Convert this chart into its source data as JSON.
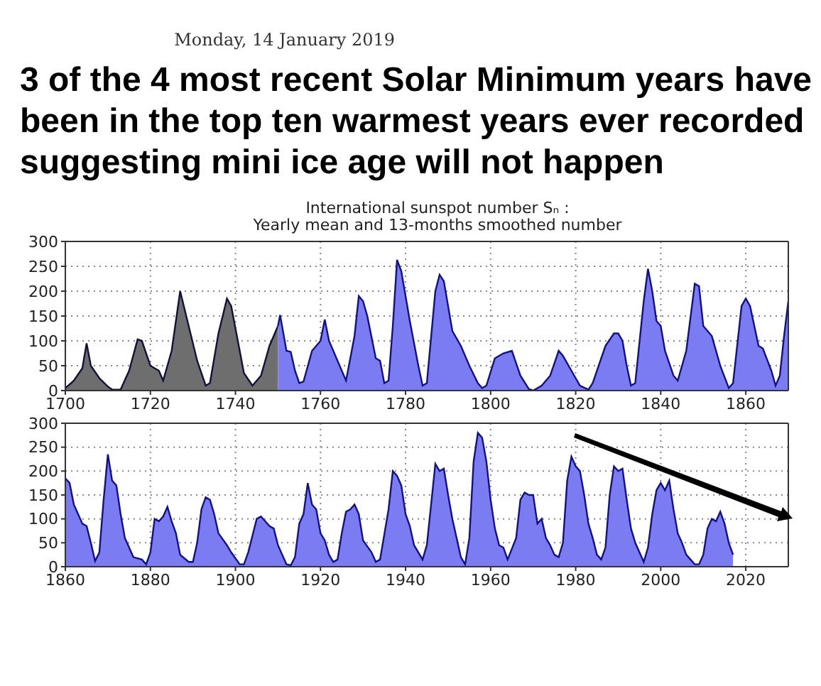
{
  "chart_data": [
    {
      "type": "area",
      "title": "3 of the 4 most recent Solar Minimum years have been in the top ten warmest years ever recorded suggesting mini ice age will not happen",
      "subtitle": "International sunspot number Sₙ :\nYearly mean and 13-months smoothed number",
      "annotations": [
        "Monday, 14 January 2019"
      ],
      "series": [
        {
          "color": "#6e6e6e",
          "x": [
            1700,
            1702,
            1704,
            1705,
            1706,
            1708,
            1710,
            1711,
            1713,
            1715,
            1717,
            1718,
            1720,
            1722,
            1723,
            1725,
            1727,
            1729,
            1731,
            1733,
            1734,
            1736,
            1738,
            1739,
            1741,
            1742,
            1744,
            1746,
            1748,
            1750
          ],
          "values": [
            5,
            20,
            45,
            95,
            50,
            25,
            8,
            2,
            2,
            40,
            103,
            100,
            50,
            40,
            20,
            80,
            200,
            130,
            60,
            10,
            15,
            115,
            185,
            170,
            80,
            35,
            10,
            30,
            90,
            130
          ]
        },
        {
          "color": "#7b7bf2",
          "x": [
            1750,
            1750.5,
            1752,
            1753,
            1754,
            1755,
            1756,
            1758,
            1760,
            1761,
            1762,
            1764,
            1766,
            1768,
            1769,
            1770,
            1771,
            1773,
            1774,
            1775,
            1776,
            1777,
            1778,
            1779,
            1781,
            1783,
            1784,
            1785,
            1787,
            1788,
            1789,
            1791,
            1793,
            1795,
            1797,
            1798,
            1799,
            1801,
            1803,
            1805,
            1807,
            1809,
            1810,
            1812,
            1814,
            1816,
            1817,
            1819,
            1821,
            1823,
            1824,
            1827,
            1829,
            1830,
            1831,
            1832,
            1833,
            1834,
            1836,
            1837,
            1838,
            1839,
            1840,
            1841,
            1843,
            1844,
            1846,
            1848,
            1849,
            1850,
            1852,
            1854,
            1856,
            1857,
            1859,
            1860,
            1861,
            1863,
            1864,
            1866,
            1867,
            1868,
            1869,
            1870
          ],
          "values": [
            130,
            152,
            80,
            78,
            40,
            15,
            18,
            80,
            100,
            143,
            100,
            60,
            20,
            110,
            190,
            180,
            150,
            65,
            60,
            15,
            20,
            130,
            263,
            240,
            140,
            50,
            10,
            15,
            200,
            233,
            220,
            120,
            90,
            50,
            15,
            5,
            10,
            65,
            75,
            80,
            30,
            3,
            0,
            10,
            30,
            80,
            70,
            40,
            10,
            2,
            15,
            90,
            115,
            115,
            100,
            50,
            10,
            15,
            180,
            245,
            200,
            140,
            130,
            80,
            30,
            20,
            80,
            215,
            210,
            130,
            110,
            50,
            5,
            15,
            170,
            185,
            170,
            90,
            85,
            40,
            10,
            30,
            110,
            180
          ]
        }
      ],
      "xlim": [
        1700,
        1870
      ],
      "xticks": [
        1700,
        1720,
        1740,
        1760,
        1780,
        1800,
        1820,
        1840,
        1860
      ],
      "ylim": [
        0,
        300
      ],
      "yticks": [
        0,
        50,
        100,
        150,
        200,
        250,
        300
      ],
      "grid": true
    },
    {
      "type": "area",
      "series": [
        {
          "color": "#7b7bf2",
          "x": [
            1860,
            1861,
            1862,
            1863,
            1864,
            1865,
            1866,
            1867,
            1868,
            1869,
            1870,
            1871,
            1872,
            1873,
            1874,
            1876,
            1878,
            1879,
            1880,
            1881,
            1882,
            1883,
            1884,
            1885,
            1886,
            1887,
            1889,
            1890,
            1891,
            1892,
            1893,
            1894,
            1895,
            1896,
            1898,
            1899,
            1901,
            1902,
            1903,
            1905,
            1906,
            1907,
            1908,
            1909,
            1910,
            1912,
            1913,
            1914,
            1915,
            1916,
            1917,
            1918,
            1919,
            1920,
            1921,
            1922,
            1923,
            1924,
            1925,
            1926,
            1927,
            1928,
            1929,
            1930,
            1932,
            1933,
            1934,
            1936,
            1937,
            1938,
            1939,
            1940,
            1941,
            1942,
            1944,
            1945,
            1947,
            1948,
            1949,
            1950,
            1951,
            1953,
            1954,
            1955,
            1956,
            1957,
            1958,
            1959,
            1960,
            1961,
            1962,
            1963,
            1964,
            1966,
            1967,
            1968,
            1969,
            1970,
            1971,
            1972,
            1973,
            1974,
            1975,
            1976,
            1977,
            1978,
            1979,
            1980,
            1981,
            1982,
            1983,
            1984,
            1985,
            1986,
            1987,
            1988,
            1989,
            1990,
            1991,
            1992,
            1993,
            1994,
            1995,
            1996,
            1997,
            1998,
            1999,
            2000,
            2001,
            2002,
            2003,
            2004,
            2005,
            2006,
            2007,
            2008,
            2009,
            2010,
            2011,
            2012,
            2013,
            2014,
            2015,
            2016,
            2017
          ],
          "values": [
            185,
            175,
            130,
            110,
            90,
            85,
            50,
            12,
            30,
            140,
            235,
            180,
            170,
            110,
            60,
            20,
            15,
            5,
            30,
            100,
            95,
            105,
            125,
            95,
            70,
            25,
            10,
            10,
            50,
            120,
            145,
            140,
            110,
            70,
            45,
            30,
            5,
            5,
            30,
            100,
            105,
            95,
            85,
            80,
            45,
            5,
            3,
            20,
            90,
            110,
            175,
            130,
            120,
            70,
            55,
            25,
            10,
            15,
            70,
            115,
            120,
            130,
            110,
            55,
            30,
            10,
            15,
            120,
            200,
            190,
            170,
            110,
            85,
            45,
            15,
            45,
            215,
            200,
            205,
            150,
            100,
            20,
            5,
            60,
            220,
            280,
            270,
            220,
            140,
            80,
            45,
            40,
            15,
            60,
            140,
            155,
            150,
            150,
            90,
            100,
            60,
            45,
            25,
            20,
            50,
            180,
            230,
            210,
            200,
            150,
            90,
            60,
            25,
            15,
            40,
            150,
            210,
            200,
            205,
            140,
            80,
            50,
            30,
            10,
            40,
            110,
            160,
            175,
            160,
            180,
            120,
            70,
            50,
            25,
            15,
            5,
            5,
            25,
            80,
            100,
            95,
            115,
            90,
            50,
            25
          ]
        }
      ],
      "xlim": [
        1860,
        2030
      ],
      "xticks": [
        1860,
        1880,
        1900,
        1920,
        1940,
        1960,
        1980,
        2000,
        2020
      ],
      "ylim": [
        0,
        300
      ],
      "yticks": [
        0,
        50,
        100,
        150,
        200,
        250,
        300
      ],
      "grid": true
    }
  ]
}
